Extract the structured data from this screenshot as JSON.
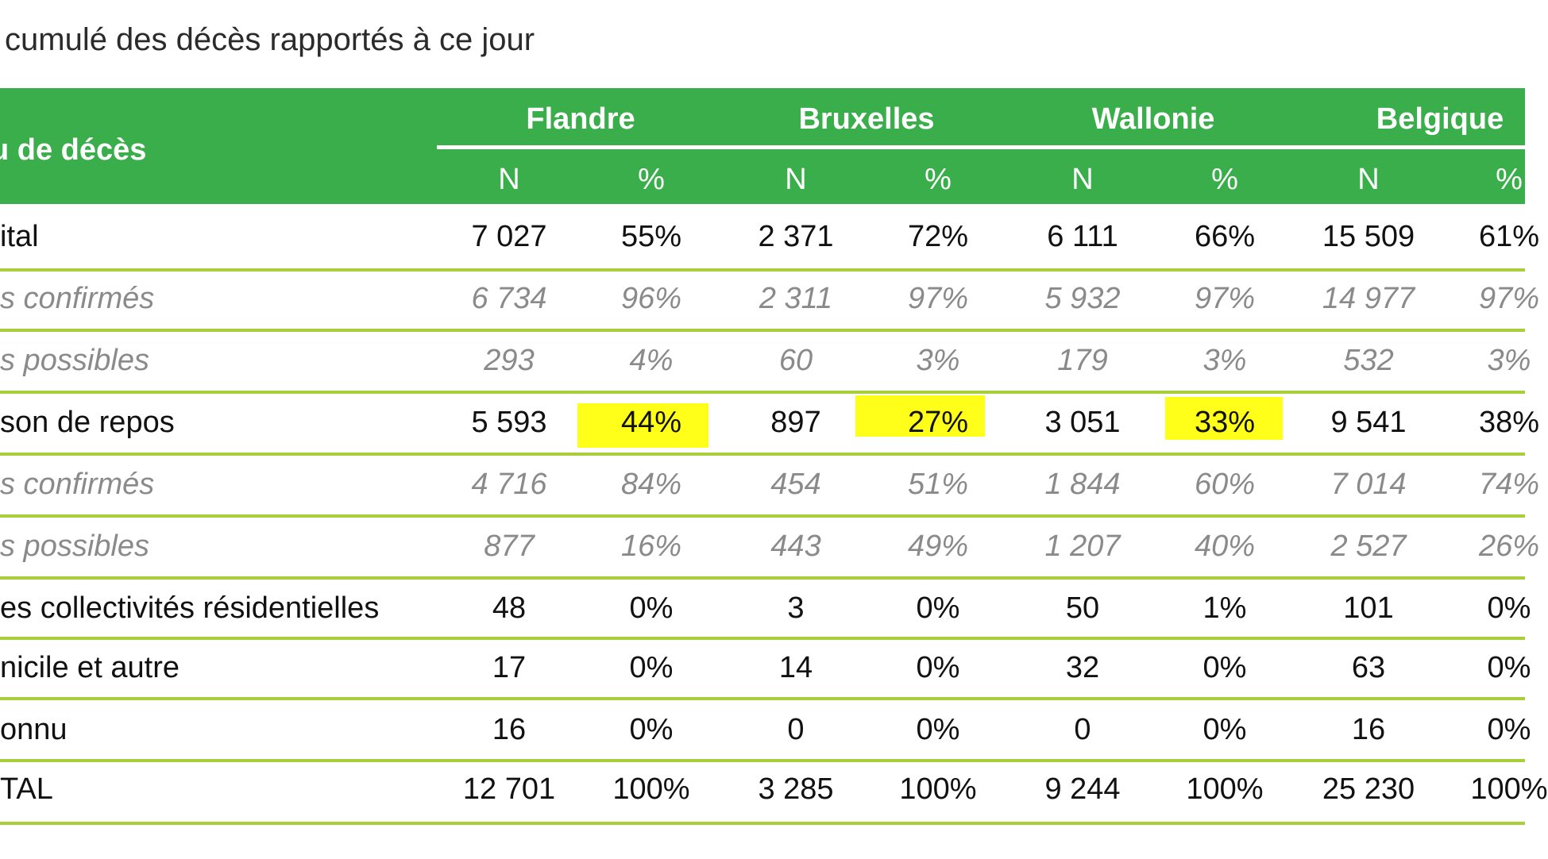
{
  "caption": "l cumulé des décès rapportés à ce jour",
  "table": {
    "row_header": "u de décès",
    "regions": [
      "Flandre",
      "Bruxelles",
      "Wallonie",
      "Belgique"
    ],
    "sub_headers": [
      "N",
      "%",
      "N",
      "%",
      "N",
      "%",
      "N",
      "%"
    ],
    "rows": [
      {
        "label": "ital",
        "type": "main",
        "cells": [
          "7 027",
          "55%",
          "2 371",
          "72%",
          "6 111",
          "66%",
          "15 509",
          "61%"
        ]
      },
      {
        "label": "s confirmés",
        "type": "sub",
        "cells": [
          "6 734",
          "96%",
          "2 311",
          "97%",
          "5 932",
          "97%",
          "14 977",
          "97%"
        ]
      },
      {
        "label": "s possibles",
        "type": "sub",
        "cells": [
          "293",
          "4%",
          "60",
          "3%",
          "179",
          "3%",
          "532",
          "3%"
        ]
      },
      {
        "label": "son de repos",
        "type": "main",
        "cells": [
          "5 593",
          "44%",
          "897",
          "27%",
          "3 051",
          "33%",
          "9 541",
          "38%"
        ]
      },
      {
        "label": "s confirmés",
        "type": "sub",
        "cells": [
          "4 716",
          "84%",
          "454",
          "51%",
          "1 844",
          "60%",
          "7 014",
          "74%"
        ]
      },
      {
        "label": "s possibles",
        "type": "sub",
        "cells": [
          "877",
          "16%",
          "443",
          "49%",
          "1 207",
          "40%",
          "2 527",
          "26%"
        ]
      },
      {
        "label": "es collectivités résidentielles",
        "type": "main",
        "cells": [
          "48",
          "0%",
          "3",
          "0%",
          "50",
          "1%",
          "101",
          "0%"
        ]
      },
      {
        "label": "nicile et autre",
        "type": "main",
        "cells": [
          "17",
          "0%",
          "14",
          "0%",
          "32",
          "0%",
          "63",
          "0%"
        ]
      },
      {
        "label": "onnu",
        "type": "main",
        "cells": [
          "16",
          "0%",
          "0",
          "0%",
          "0",
          "0%",
          "16",
          "0%"
        ]
      },
      {
        "label": "TAL",
        "type": "main",
        "cells": [
          "12 701",
          "100%",
          "3 285",
          "100%",
          "9 244",
          "100%",
          "25 230",
          "100%"
        ]
      }
    ]
  },
  "colors": {
    "header_green": "#3aae4a",
    "row_line": "#a8cf3a",
    "highlight": "#ffff1a",
    "sub_text": "#8a8a8a"
  }
}
